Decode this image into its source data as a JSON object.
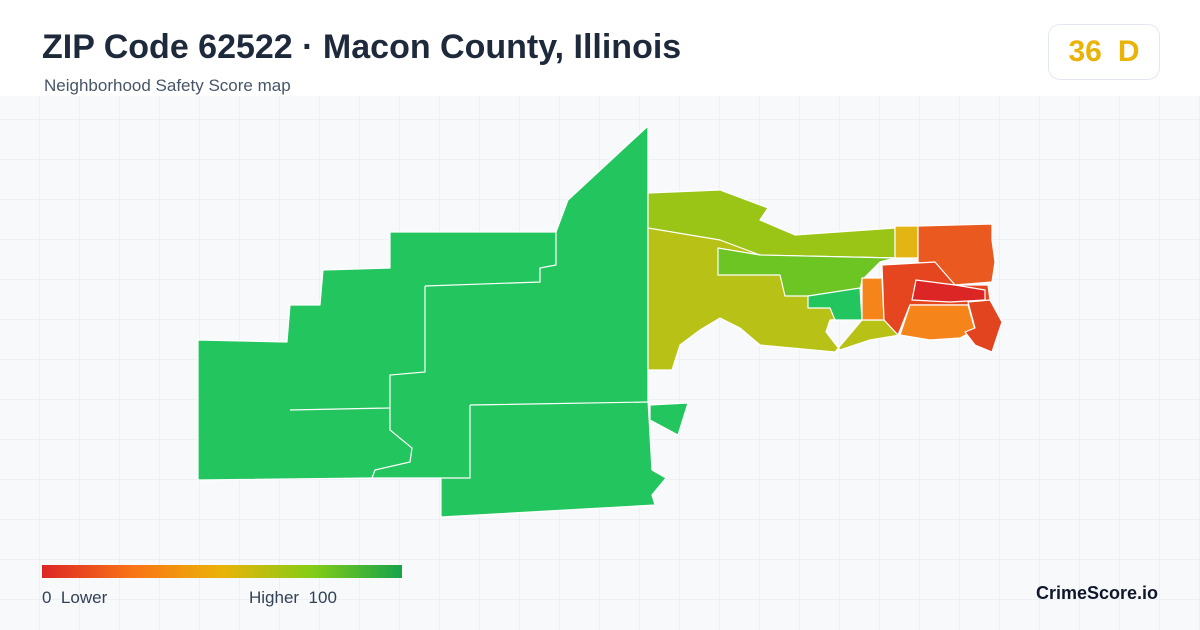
{
  "header": {
    "title": "ZIP Code 62522 · Macon County, Illinois",
    "subtitle": "Neighborhood Safety Score map",
    "score": "36",
    "grade": "D"
  },
  "legend": {
    "min": "0",
    "low_label": "Lower",
    "high_label": "Higher",
    "max": "100"
  },
  "footer": {
    "brand": "CrimeScore.io"
  }
}
